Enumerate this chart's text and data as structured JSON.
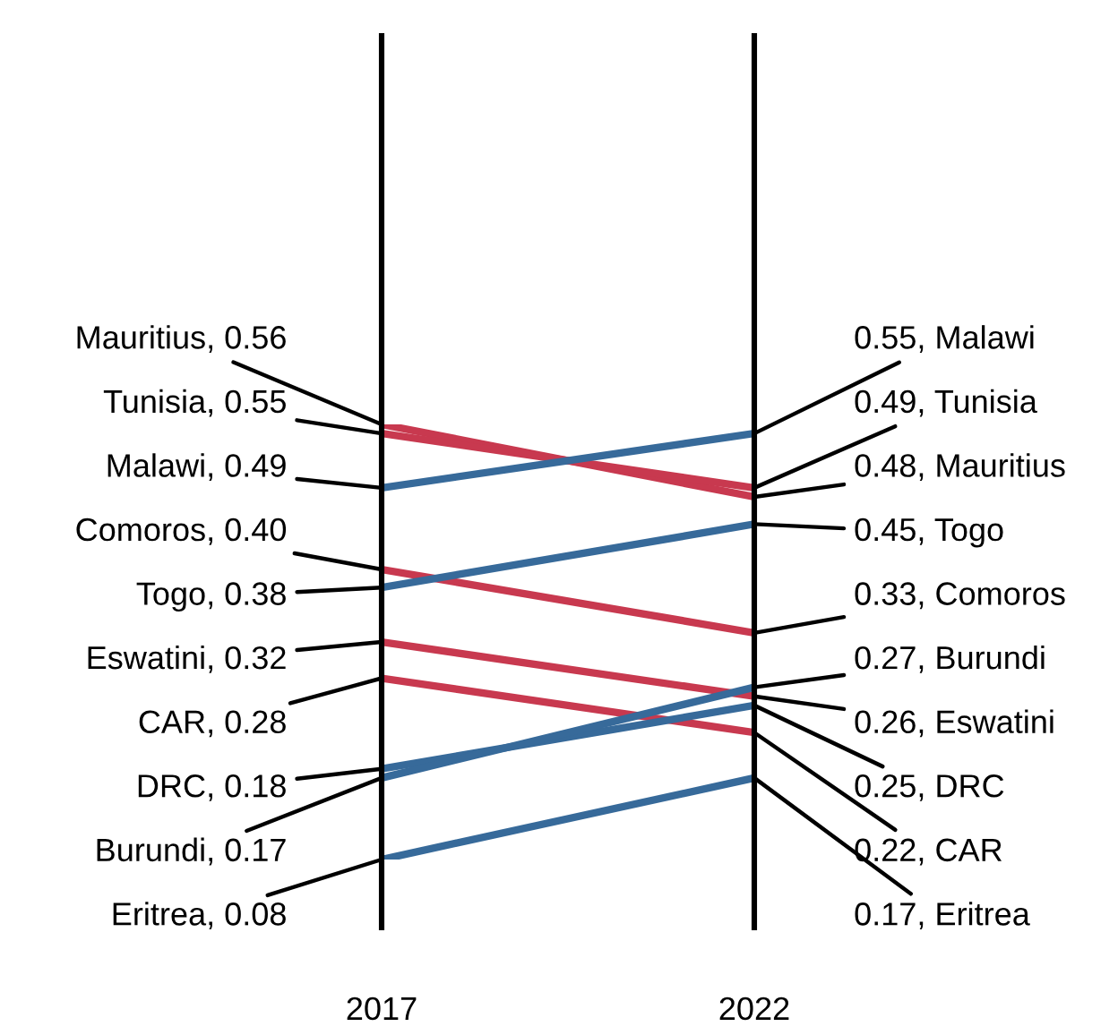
{
  "chart_data": {
    "type": "line",
    "categories": [
      "2017",
      "2022"
    ],
    "series": [
      {
        "color": "#c8394f",
        "values": [
          0.56,
          0.48
        ],
        "value_labels": [
          "Mauritius, 0.56",
          "0.48, Mauritius"
        ]
      },
      {
        "color": "#c8394f",
        "values": [
          0.55,
          0.49
        ],
        "value_labels": [
          "Tunisia, 0.55",
          "0.49, Tunisia"
        ]
      },
      {
        "color": "#376a9a",
        "values": [
          0.49,
          0.55
        ],
        "value_labels": [
          "Malawi, 0.49",
          "0.55, Malawi"
        ]
      },
      {
        "color": "#c8394f",
        "values": [
          0.4,
          0.33
        ],
        "value_labels": [
          "Comoros, 0.40",
          "0.33, Comoros"
        ]
      },
      {
        "color": "#376a9a",
        "values": [
          0.38,
          0.45
        ],
        "value_labels": [
          "Togo, 0.38",
          "0.45, Togo"
        ]
      },
      {
        "color": "#c8394f",
        "values": [
          0.32,
          0.26
        ],
        "value_labels": [
          "Eswatini, 0.32",
          "0.26, Eswatini"
        ]
      },
      {
        "color": "#c8394f",
        "values": [
          0.28,
          0.22
        ],
        "value_labels": [
          "CAR, 0.28",
          "0.22, CAR"
        ]
      },
      {
        "color": "#376a9a",
        "values": [
          0.18,
          0.25
        ],
        "value_labels": [
          "DRC, 0.18",
          "0.25, DRC"
        ]
      },
      {
        "color": "#376a9a",
        "values": [
          0.17,
          0.27
        ],
        "value_labels": [
          "Burundi, 0.17",
          "0.27, Burundi"
        ]
      },
      {
        "color": "#376a9a",
        "values": [
          0.08,
          0.17
        ],
        "value_labels": [
          "Eritrea, 0.08",
          "0.17, Eritrea"
        ]
      }
    ]
  }
}
